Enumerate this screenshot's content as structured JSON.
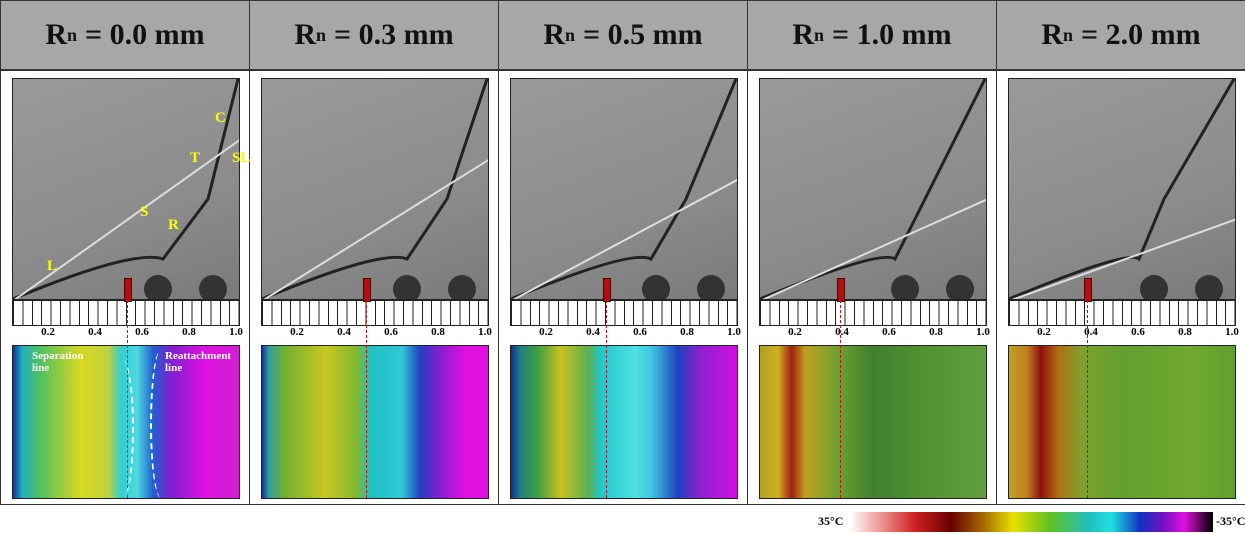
{
  "panels": [
    {
      "header": {
        "symbol": "R",
        "subscript": "n",
        "value": "= 0.0 mm"
      },
      "scale_labels": [
        "0.2",
        "0.4",
        "0.6",
        "0.8",
        "1.0"
      ]
    },
    {
      "header": {
        "symbol": "R",
        "subscript": "n",
        "value": "= 0.3 mm"
      },
      "scale_labels": [
        "0.2",
        "0.4",
        "0.6",
        "0.8",
        "1.0"
      ]
    },
    {
      "header": {
        "symbol": "R",
        "subscript": "n",
        "value": "= 0.5 mm"
      },
      "scale_labels": [
        "0.2",
        "0.4",
        "0.6",
        "0.8",
        "1.0"
      ]
    },
    {
      "header": {
        "symbol": "R",
        "subscript": "n",
        "value": "= 1.0 mm"
      },
      "scale_labels": [
        "0.2",
        "0.4",
        "0.6",
        "0.8",
        "1.0"
      ]
    },
    {
      "header": {
        "symbol": "R",
        "subscript": "n",
        "value": "= 2.0 mm"
      },
      "scale_labels": [
        "0.2",
        "0.4",
        "0.6",
        "0.8",
        "1.0"
      ]
    }
  ],
  "annotations": {
    "schlieren": [
      "C",
      "T",
      "SL",
      "S",
      "R",
      "L"
    ],
    "ir": [
      "Separation line",
      "Reattachment line"
    ]
  },
  "colorbar": {
    "max_label": "35°C",
    "min_label": "-35°C"
  }
}
